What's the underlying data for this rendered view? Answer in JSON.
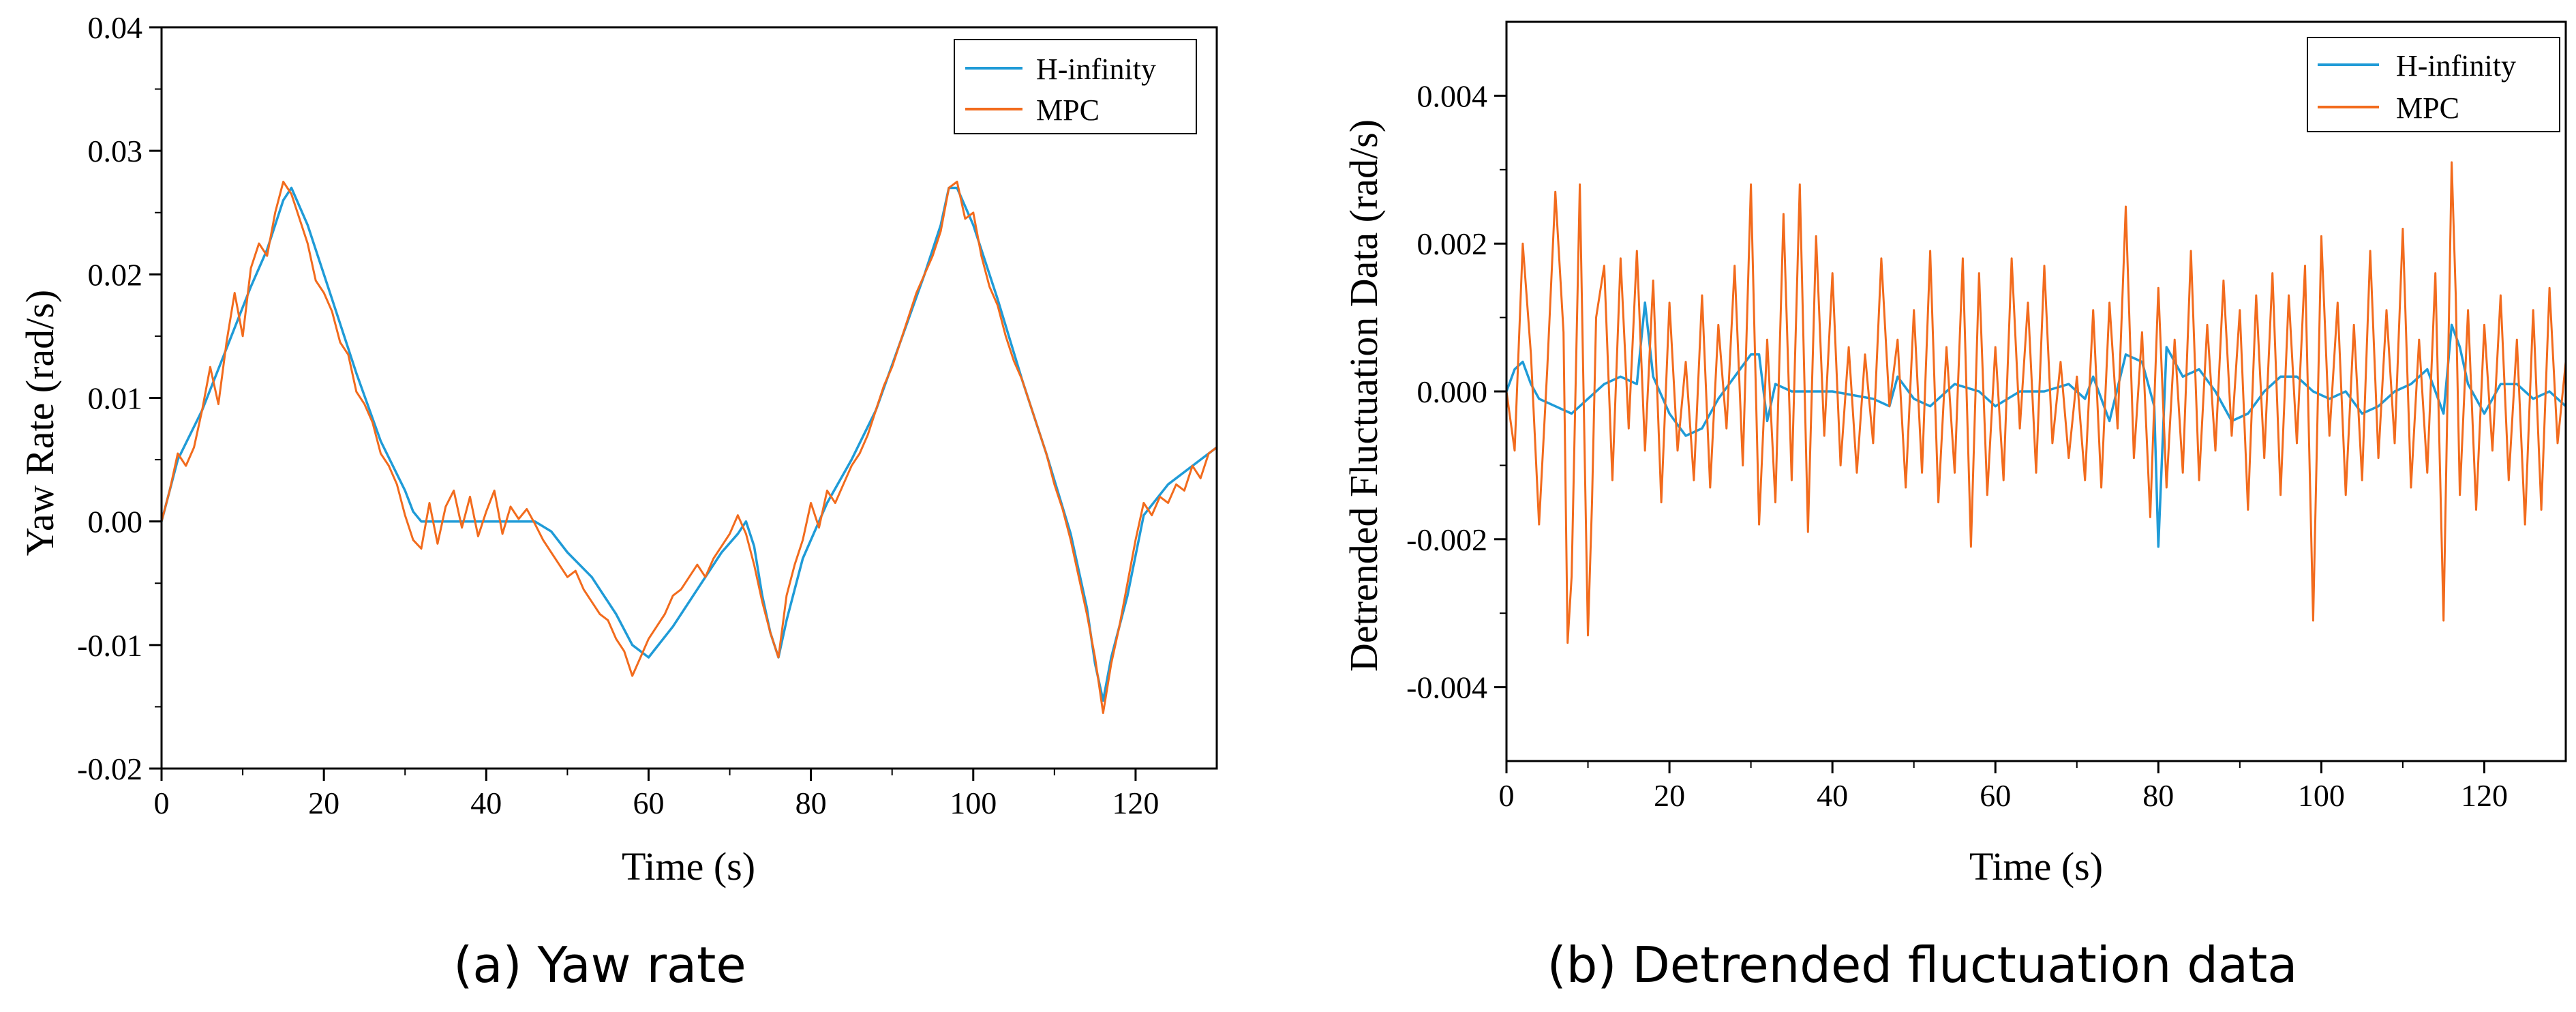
{
  "chart_data": [
    {
      "type": "line",
      "id": "a",
      "caption": "(a)  Yaw rate",
      "xlabel": "Time (s)",
      "ylabel": "Yaw Rate (rad/s)",
      "xlim": [
        0,
        130
      ],
      "ylim": [
        -0.02,
        0.04
      ],
      "xticks": [
        0,
        20,
        40,
        60,
        80,
        100,
        120
      ],
      "xtick_labels": [
        "0",
        "20",
        "40",
        "60",
        "80",
        "100",
        "120"
      ],
      "yticks": [
        -0.02,
        -0.01,
        0.0,
        0.01,
        0.02,
        0.03,
        0.04
      ],
      "ytick_labels": [
        "-0.02",
        "-0.01",
        "0.00",
        "0.01",
        "0.02",
        "0.03",
        "0.04"
      ],
      "legend_position": "top-right",
      "series": [
        {
          "name": "H-infinity",
          "color": "#1f9bd7",
          "x": [
            0,
            2,
            5,
            8,
            11,
            13,
            15,
            16,
            18,
            21,
            24,
            27,
            30,
            31,
            32,
            35,
            40,
            44,
            46,
            48,
            50,
            53,
            56,
            58,
            60,
            63,
            66,
            69,
            71,
            72,
            73,
            74,
            75,
            76,
            77,
            79,
            82,
            85,
            88,
            91,
            94,
            96,
            97,
            98,
            100,
            103,
            106,
            109,
            112,
            114,
            115,
            116,
            117,
            119,
            121,
            124,
            127,
            130
          ],
          "y": [
            0,
            0.005,
            0.009,
            0.014,
            0.019,
            0.022,
            0.026,
            0.027,
            0.024,
            0.018,
            0.012,
            0.0065,
            0.0025,
            0.0008,
            0,
            0,
            0,
            0,
            0,
            -0.0008,
            -0.0025,
            -0.0045,
            -0.0075,
            -0.01,
            -0.011,
            -0.0085,
            -0.0055,
            -0.0025,
            -0.001,
            0,
            -0.002,
            -0.006,
            -0.009,
            -0.011,
            -0.008,
            -0.003,
            0.0015,
            0.005,
            0.009,
            0.0145,
            0.02,
            0.024,
            0.027,
            0.027,
            0.024,
            0.018,
            0.0115,
            0.0055,
            -0.001,
            -0.007,
            -0.0115,
            -0.0145,
            -0.011,
            -0.006,
            0.0005,
            0.003,
            0.0045,
            0.006
          ]
        },
        {
          "name": "MPC",
          "color": "#f26b1d",
          "x": [
            0,
            1,
            2,
            3,
            4,
            5,
            6,
            7,
            8,
            9,
            10,
            11,
            12,
            13,
            14,
            15,
            16,
            17,
            18,
            19,
            20,
            21,
            22,
            23,
            24,
            25,
            26,
            27,
            28,
            29,
            30,
            31,
            32,
            33,
            34,
            35,
            36,
            37,
            38,
            39,
            40,
            41,
            42,
            43,
            44,
            45,
            46,
            47,
            48,
            49,
            50,
            51,
            52,
            53,
            54,
            55,
            56,
            57,
            58,
            59,
            60,
            61,
            62,
            63,
            64,
            65,
            66,
            67,
            68,
            69,
            70,
            71,
            72,
            73,
            74,
            75,
            76,
            77,
            78,
            79,
            80,
            81,
            82,
            83,
            84,
            85,
            86,
            87,
            88,
            89,
            90,
            91,
            92,
            93,
            94,
            95,
            96,
            97,
            98,
            99,
            100,
            101,
            102,
            103,
            104,
            105,
            106,
            107,
            108,
            109,
            110,
            111,
            112,
            113,
            114,
            115,
            116,
            117,
            118,
            119,
            120,
            121,
            122,
            123,
            124,
            125,
            126,
            127,
            128,
            129,
            130
          ],
          "y": [
            0,
            0.0025,
            0.0055,
            0.0045,
            0.006,
            0.009,
            0.0125,
            0.0095,
            0.0145,
            0.0185,
            0.015,
            0.0205,
            0.0225,
            0.0215,
            0.025,
            0.0275,
            0.0265,
            0.0245,
            0.0225,
            0.0195,
            0.0185,
            0.017,
            0.0145,
            0.0135,
            0.0105,
            0.0095,
            0.008,
            0.0055,
            0.0045,
            0.003,
            0.0005,
            -0.0015,
            -0.0022,
            0.0015,
            -0.0018,
            0.0012,
            0.0025,
            -0.0005,
            0.002,
            -0.0012,
            0.0008,
            0.0025,
            -0.001,
            0.0012,
            0.0002,
            0.001,
            -0.0002,
            -0.0015,
            -0.0025,
            -0.0035,
            -0.0045,
            -0.004,
            -0.0055,
            -0.0065,
            -0.0075,
            -0.008,
            -0.0095,
            -0.0105,
            -0.0125,
            -0.011,
            -0.0095,
            -0.0085,
            -0.0075,
            -0.006,
            -0.0055,
            -0.0045,
            -0.0035,
            -0.0045,
            -0.003,
            -0.002,
            -0.001,
            0.0005,
            -0.001,
            -0.0035,
            -0.0065,
            -0.009,
            -0.011,
            -0.006,
            -0.0035,
            -0.0015,
            0.0015,
            -0.0005,
            0.0025,
            0.0015,
            0.003,
            0.0045,
            0.0055,
            0.007,
            0.009,
            0.011,
            0.0125,
            0.0145,
            0.0165,
            0.0185,
            0.02,
            0.0215,
            0.0235,
            0.027,
            0.0275,
            0.0245,
            0.025,
            0.0215,
            0.019,
            0.0175,
            0.015,
            0.013,
            0.0115,
            0.0095,
            0.0075,
            0.0055,
            0.003,
            0.001,
            -0.0015,
            -0.0045,
            -0.0075,
            -0.011,
            -0.0155,
            -0.0115,
            -0.0085,
            -0.005,
            -0.0015,
            0.0015,
            0.0005,
            0.002,
            0.0015,
            0.003,
            0.0025,
            0.0045,
            0.0035,
            0.0055,
            0.006
          ]
        }
      ]
    },
    {
      "type": "line",
      "id": "b",
      "caption": "(b)  Detrended fluctuation data",
      "xlabel": "Time (s)",
      "ylabel": "Detrended Fluctuation Data (rad/s)",
      "xlim": [
        0,
        130
      ],
      "ylim": [
        -0.005,
        0.005
      ],
      "xticks": [
        0,
        20,
        40,
        60,
        80,
        100,
        120
      ],
      "xtick_labels": [
        "0",
        "20",
        "40",
        "60",
        "80",
        "100",
        "120"
      ],
      "yticks": [
        -0.004,
        -0.002,
        0.0,
        0.002,
        0.004
      ],
      "ytick_labels": [
        "-0.004",
        "-0.002",
        "0.000",
        "0.002",
        "0.004"
      ],
      "legend_position": "top-right",
      "series": [
        {
          "name": "H-infinity",
          "color": "#1f9bd7",
          "x": [
            0,
            1,
            2,
            3,
            4,
            6,
            8,
            10,
            12,
            14,
            16,
            17,
            18,
            20,
            22,
            24,
            26,
            28,
            30,
            31,
            32,
            33,
            35,
            40,
            45,
            47,
            48,
            50,
            52,
            55,
            58,
            60,
            63,
            66,
            69,
            71,
            72,
            74,
            76,
            78,
            79.5,
            80,
            81,
            83,
            85,
            87,
            89,
            91,
            93,
            95,
            97,
            99,
            101,
            103,
            105,
            107,
            109,
            111,
            113,
            115,
            116,
            117,
            118,
            120,
            122,
            124,
            126,
            128,
            130
          ],
          "y": [
            0,
            0.0003,
            0.0004,
            0.0001,
            -0.0001,
            -0.0002,
            -0.0003,
            -0.0001,
            0.0001,
            0.0002,
            0.0001,
            0.0012,
            0.0002,
            -0.0003,
            -0.0006,
            -0.0005,
            -0.0001,
            0.0002,
            0.0005,
            0.0005,
            -0.0004,
            0.0001,
            0,
            0,
            -0.0001,
            -0.0002,
            0.0002,
            -0.0001,
            -0.0002,
            0.0001,
            0,
            -0.0002,
            0,
            0,
            0.0001,
            -0.0001,
            0.0002,
            -0.0004,
            0.0005,
            0.0004,
            -0.0002,
            -0.0021,
            0.0006,
            0.0002,
            0.0003,
            0,
            -0.0004,
            -0.0003,
            0,
            0.0002,
            0.0002,
            0,
            -0.0001,
            0,
            -0.0003,
            -0.0002,
            0,
            0.0001,
            0.0003,
            -0.0003,
            0.0009,
            0.0006,
            0.0001,
            -0.0003,
            0.0001,
            0.0001,
            -0.0001,
            0,
            -0.0002
          ]
        },
        {
          "name": "MPC",
          "color": "#f26b1d",
          "x": [
            0,
            1,
            2,
            3,
            4,
            5,
            6,
            7,
            7.5,
            8,
            9,
            10,
            10.5,
            11,
            12,
            13,
            14,
            15,
            16,
            17,
            18,
            19,
            20,
            21,
            22,
            23,
            24,
            25,
            26,
            27,
            28,
            29,
            30,
            31,
            32,
            33,
            34,
            35,
            36,
            37,
            38,
            39,
            40,
            41,
            42,
            43,
            44,
            45,
            46,
            47,
            48,
            49,
            50,
            51,
            52,
            53,
            54,
            55,
            56,
            57,
            58,
            59,
            60,
            61,
            62,
            63,
            64,
            65,
            66,
            67,
            68,
            69,
            70,
            71,
            72,
            73,
            74,
            75,
            76,
            77,
            78,
            79,
            80,
            81,
            82,
            83,
            84,
            85,
            86,
            87,
            88,
            89,
            90,
            91,
            92,
            93,
            94,
            95,
            96,
            97,
            98,
            99,
            100,
            101,
            102,
            103,
            104,
            105,
            106,
            107,
            108,
            109,
            110,
            111,
            112,
            113,
            114,
            115,
            116,
            116.5,
            117,
            118,
            119,
            120,
            121,
            122,
            123,
            124,
            125,
            126,
            127,
            128,
            129,
            130
          ],
          "y": [
            0,
            -0.0008,
            0.002,
            0.0005,
            -0.0018,
            0.0003,
            0.0027,
            0.0008,
            -0.0034,
            -0.0025,
            0.0028,
            -0.0033,
            -0.0015,
            0.001,
            0.0017,
            -0.0012,
            0.0018,
            -0.0005,
            0.0019,
            -0.0008,
            0.0015,
            -0.0015,
            0.0012,
            -0.0008,
            0.0004,
            -0.0012,
            0.0013,
            -0.0013,
            0.0009,
            -0.0005,
            0.0017,
            -0.001,
            0.0028,
            -0.0018,
            0.0007,
            -0.0015,
            0.0024,
            -0.0012,
            0.0028,
            -0.0019,
            0.0021,
            -0.0006,
            0.0016,
            -0.001,
            0.0006,
            -0.0011,
            0.0005,
            -0.0007,
            0.0018,
            -0.0002,
            0.0007,
            -0.0013,
            0.0011,
            -0.0011,
            0.0019,
            -0.0015,
            0.0006,
            -0.0011,
            0.0018,
            -0.0021,
            0.0016,
            -0.0014,
            0.0006,
            -0.0012,
            0.0018,
            -0.0005,
            0.0012,
            -0.0011,
            0.0017,
            -0.0007,
            0.0004,
            -0.0009,
            0.0002,
            -0.0012,
            0.0011,
            -0.0013,
            0.0012,
            -0.0005,
            0.0025,
            -0.0009,
            0.0008,
            -0.0017,
            0.0014,
            -0.0013,
            0.0007,
            -0.0011,
            0.0019,
            -0.0012,
            0.0009,
            -0.0008,
            0.0015,
            -0.0006,
            0.0011,
            -0.0016,
            0.0013,
            -0.0009,
            0.0016,
            -0.0014,
            0.0013,
            -0.0007,
            0.0017,
            -0.0031,
            0.0021,
            -0.0006,
            0.0012,
            -0.0014,
            0.0009,
            -0.0012,
            0.0019,
            -0.0009,
            0.0011,
            -0.0007,
            0.0022,
            -0.0013,
            0.0007,
            -0.0011,
            0.0016,
            -0.0031,
            0.0031,
            0.0013,
            -0.0014,
            0.0011,
            -0.0016,
            0.0009,
            -0.0008,
            0.0013,
            -0.0012,
            0.0007,
            -0.0018,
            0.0011,
            -0.0016,
            0.0014,
            -0.0007,
            0.0004
          ]
        }
      ]
    }
  ]
}
